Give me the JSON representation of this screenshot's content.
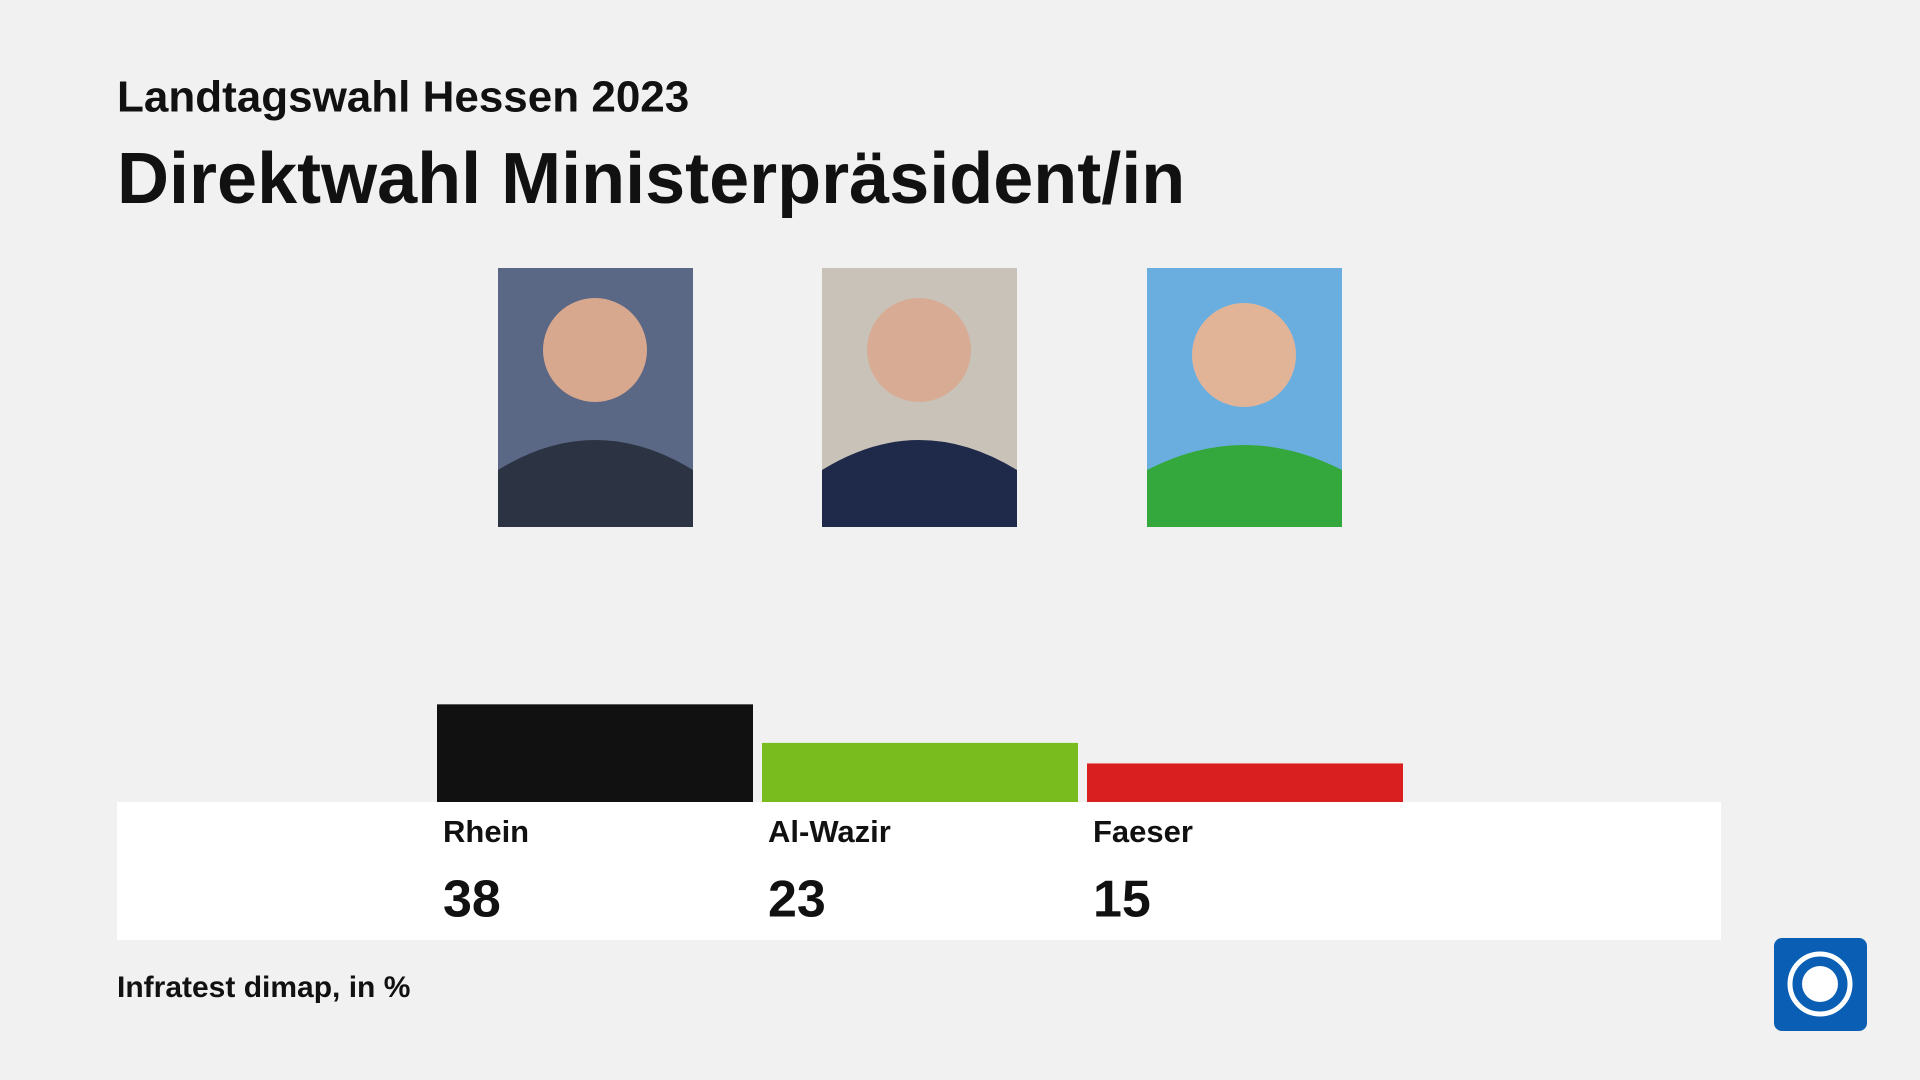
{
  "chart_data": {
    "type": "bar",
    "subtitle": "Landtagswahl Hessen 2023",
    "title": "Direktwahl Ministerpräsident/in",
    "categories": [
      "Rhein",
      "Al-Wazir",
      "Faeser"
    ],
    "values": [
      38,
      23,
      15
    ],
    "colors": [
      "#111111",
      "#78bc1e",
      "#d91f1f"
    ],
    "source": "Infratest dimap, in %"
  }
}
